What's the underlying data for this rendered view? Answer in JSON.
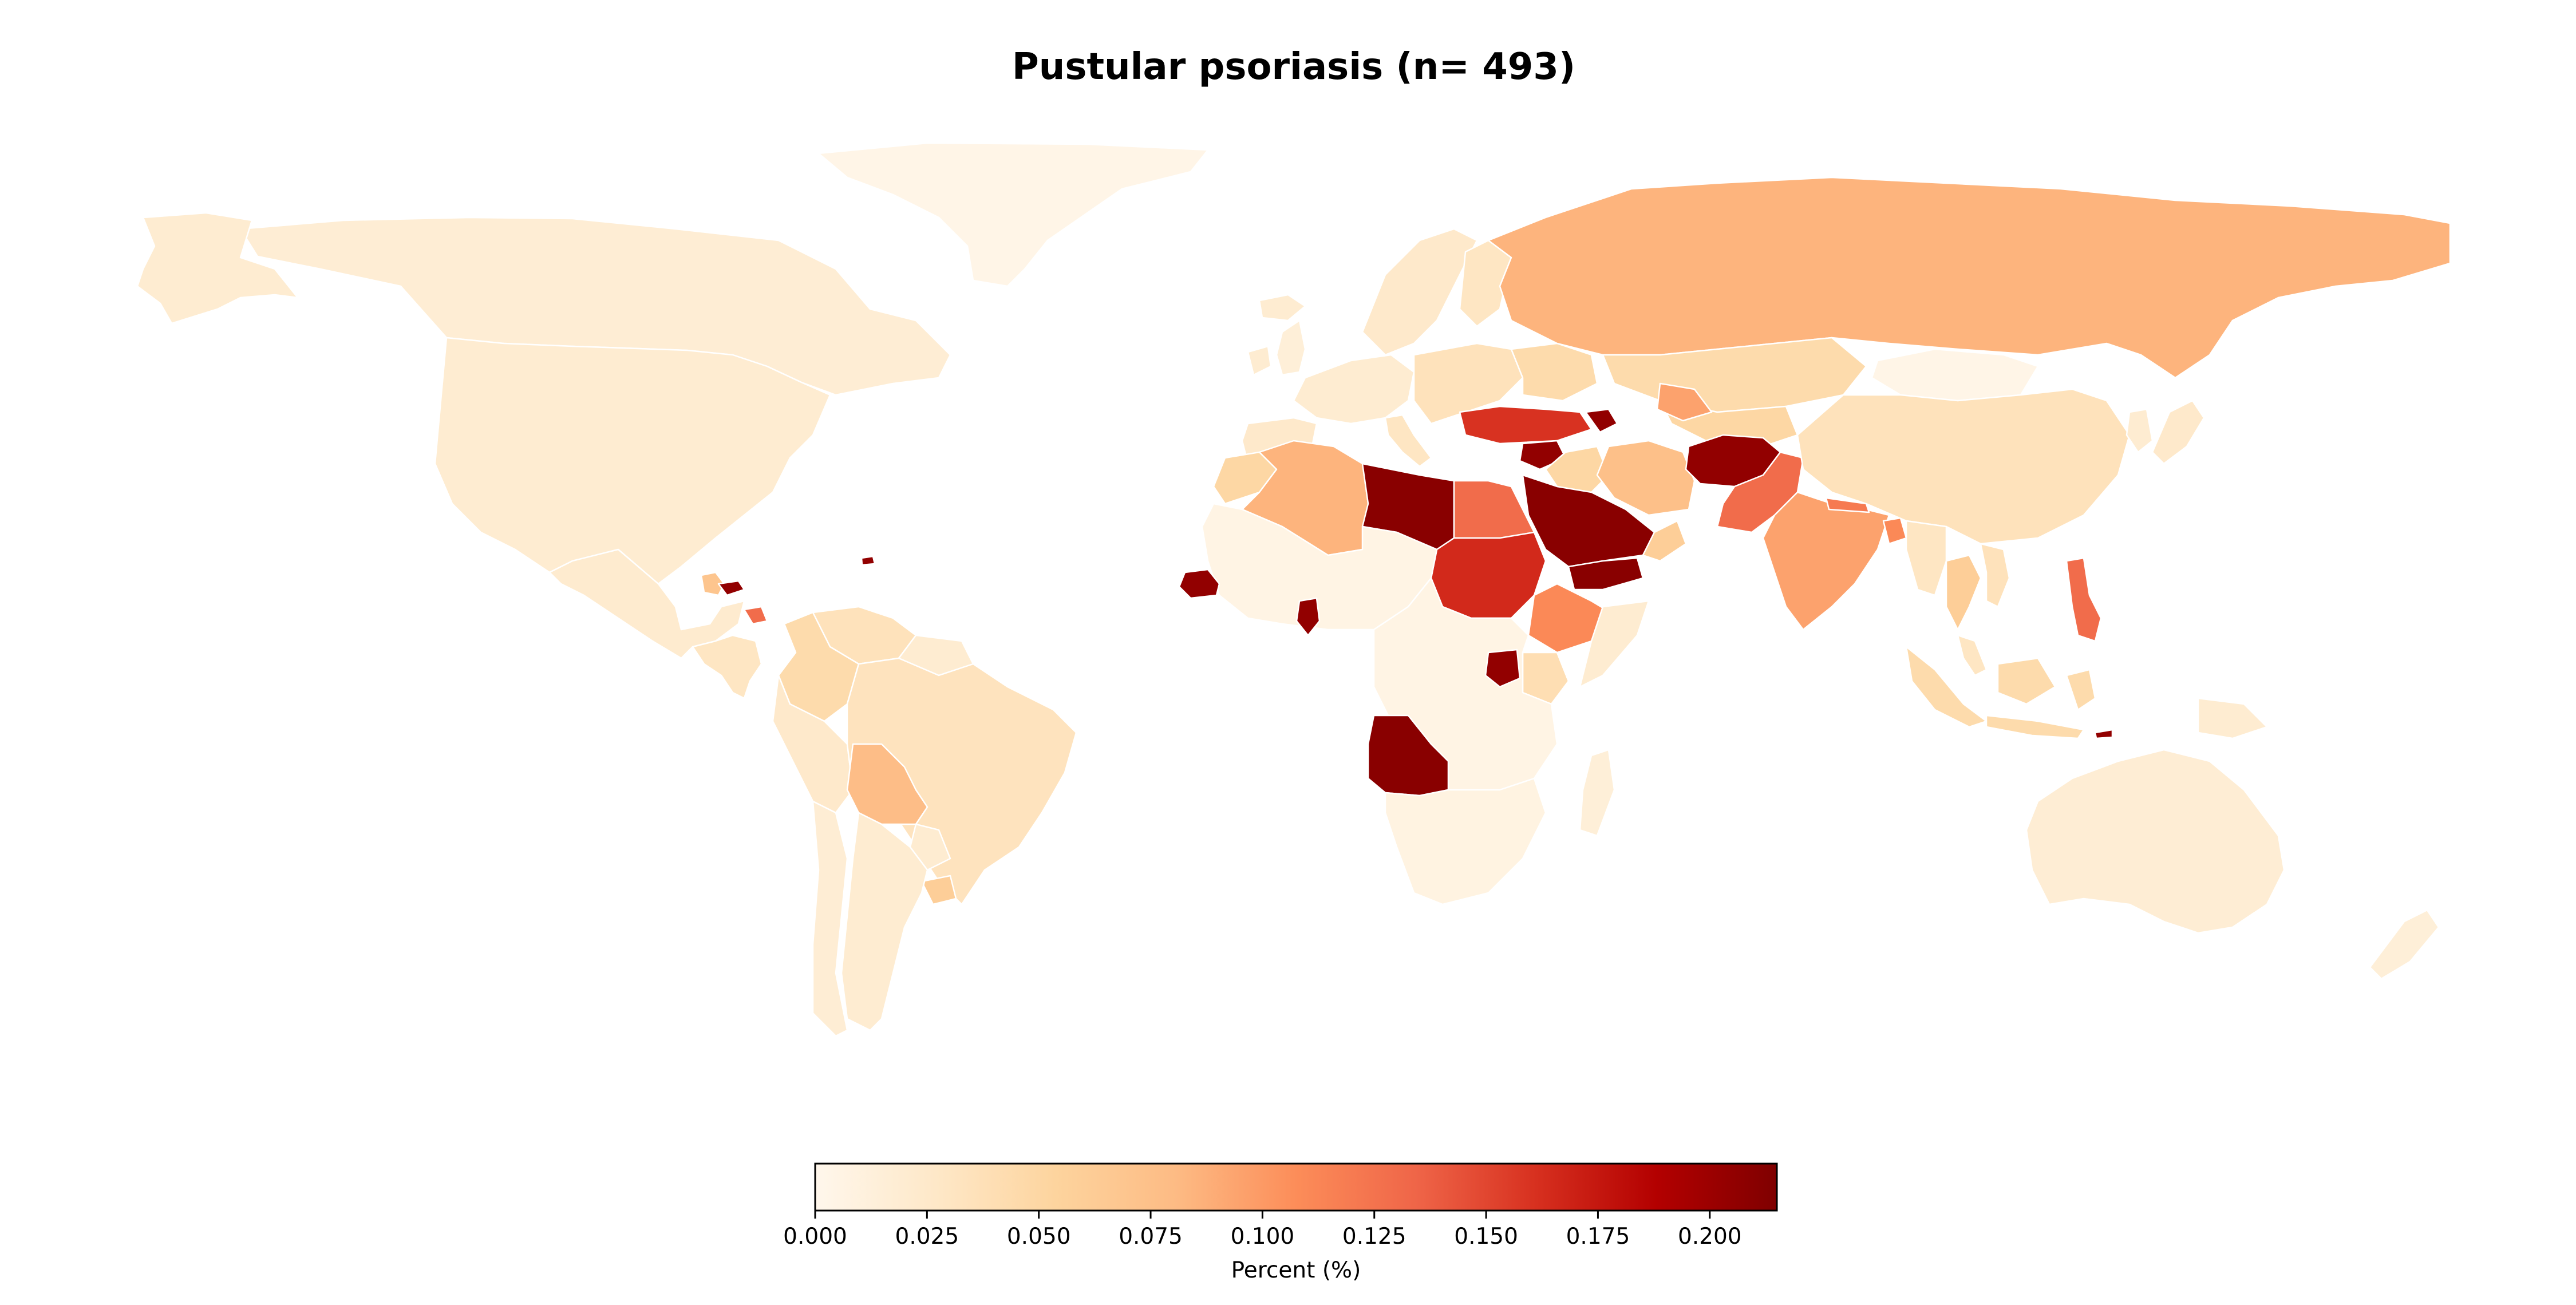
{
  "chart_data": {
    "type": "choropleth",
    "title": "Pustular psoriasis (n= 493)",
    "colormap": "OrRd",
    "color_stops": [
      "#fff7ec",
      "#fee8c8",
      "#fdd49e",
      "#fdbb84",
      "#fc8d59",
      "#ef6548",
      "#d7301f",
      "#b30000",
      "#7f0000"
    ],
    "scale": {
      "label": "Percent (%)",
      "min": 0.0,
      "max": 0.215,
      "ticks": [
        "0.000",
        "0.025",
        "0.050",
        "0.075",
        "0.100",
        "0.125",
        "0.150",
        "0.175",
        "0.200"
      ],
      "tick_values": [
        0.0,
        0.025,
        0.05,
        0.075,
        0.1,
        0.125,
        0.15,
        0.175,
        0.2
      ]
    },
    "regions": [
      {
        "id": "greenland",
        "value": 0.004
      },
      {
        "id": "canada",
        "value": 0.018
      },
      {
        "id": "usa",
        "value": 0.02
      },
      {
        "id": "alaska",
        "value": 0.02
      },
      {
        "id": "mexico",
        "value": 0.022
      },
      {
        "id": "central-america",
        "value": 0.03
      },
      {
        "id": "guatemala",
        "value": 0.07
      },
      {
        "id": "honduras",
        "value": 0.205
      },
      {
        "id": "costa-rica",
        "value": 0.13
      },
      {
        "id": "colombia",
        "value": 0.045
      },
      {
        "id": "venezuela",
        "value": 0.035
      },
      {
        "id": "guianas",
        "value": 0.02
      },
      {
        "id": "brazil",
        "value": 0.033
      },
      {
        "id": "peru",
        "value": 0.025
      },
      {
        "id": "bolivia",
        "value": 0.078
      },
      {
        "id": "paraguay",
        "value": 0.02
      },
      {
        "id": "argentina",
        "value": 0.02
      },
      {
        "id": "chile",
        "value": 0.018
      },
      {
        "id": "uruguay",
        "value": 0.06
      },
      {
        "id": "puerto-rico",
        "value": 0.205
      },
      {
        "id": "iceland",
        "value": 0.02
      },
      {
        "id": "uk",
        "value": 0.015
      },
      {
        "id": "ireland",
        "value": 0.02
      },
      {
        "id": "scandinavia",
        "value": 0.025
      },
      {
        "id": "finland",
        "value": 0.03
      },
      {
        "id": "western-europe",
        "value": 0.02
      },
      {
        "id": "iberia",
        "value": 0.025
      },
      {
        "id": "italy",
        "value": 0.03
      },
      {
        "id": "eastern-europe",
        "value": 0.035
      },
      {
        "id": "ukraine",
        "value": 0.045
      },
      {
        "id": "russia",
        "value": 0.085
      },
      {
        "id": "kazakhstan",
        "value": 0.045
      },
      {
        "id": "central-asia",
        "value": 0.05
      },
      {
        "id": "turkey",
        "value": 0.16
      },
      {
        "id": "azerbaijan",
        "value": 0.205
      },
      {
        "id": "syria",
        "value": 0.205
      },
      {
        "id": "iraq",
        "value": 0.05
      },
      {
        "id": "iran",
        "value": 0.075
      },
      {
        "id": "turkmenistan",
        "value": 0.095
      },
      {
        "id": "afghanistan",
        "value": 0.205
      },
      {
        "id": "pakistan",
        "value": 0.13
      },
      {
        "id": "saudi-arabia",
        "value": 0.21
      },
      {
        "id": "yemen",
        "value": 0.21
      },
      {
        "id": "oman",
        "value": 0.06
      },
      {
        "id": "india",
        "value": 0.095
      },
      {
        "id": "nepal",
        "value": 0.12
      },
      {
        "id": "bangladesh",
        "value": 0.11
      },
      {
        "id": "mongolia",
        "value": 0.004
      },
      {
        "id": "china",
        "value": 0.035
      },
      {
        "id": "korea",
        "value": 0.02
      },
      {
        "id": "japan",
        "value": 0.025
      },
      {
        "id": "myanmar",
        "value": 0.03
      },
      {
        "id": "thailand",
        "value": 0.06
      },
      {
        "id": "vietnam",
        "value": 0.035
      },
      {
        "id": "malaysia",
        "value": 0.03
      },
      {
        "id": "indonesia",
        "value": 0.045
      },
      {
        "id": "philippines",
        "value": 0.13
      },
      {
        "id": "timor",
        "value": 0.205
      },
      {
        "id": "png",
        "value": 0.02
      },
      {
        "id": "australia",
        "value": 0.018
      },
      {
        "id": "new-zealand",
        "value": 0.015
      },
      {
        "id": "morocco",
        "value": 0.05
      },
      {
        "id": "algeria",
        "value": 0.085
      },
      {
        "id": "libya",
        "value": 0.21
      },
      {
        "id": "egypt",
        "value": 0.13
      },
      {
        "id": "sudan",
        "value": 0.165
      },
      {
        "id": "ethiopia",
        "value": 0.11
      },
      {
        "id": "somalia",
        "value": 0.02
      },
      {
        "id": "kenya",
        "value": 0.04
      },
      {
        "id": "west-africa",
        "value": 0.006
      },
      {
        "id": "senegal",
        "value": 0.205
      },
      {
        "id": "liberia",
        "value": 0.205
      },
      {
        "id": "central-africa",
        "value": 0.006
      },
      {
        "id": "uganda",
        "value": 0.205
      },
      {
        "id": "angola",
        "value": 0.21
      },
      {
        "id": "southern-africa",
        "value": 0.008
      },
      {
        "id": "madagascar",
        "value": 0.015
      }
    ]
  }
}
